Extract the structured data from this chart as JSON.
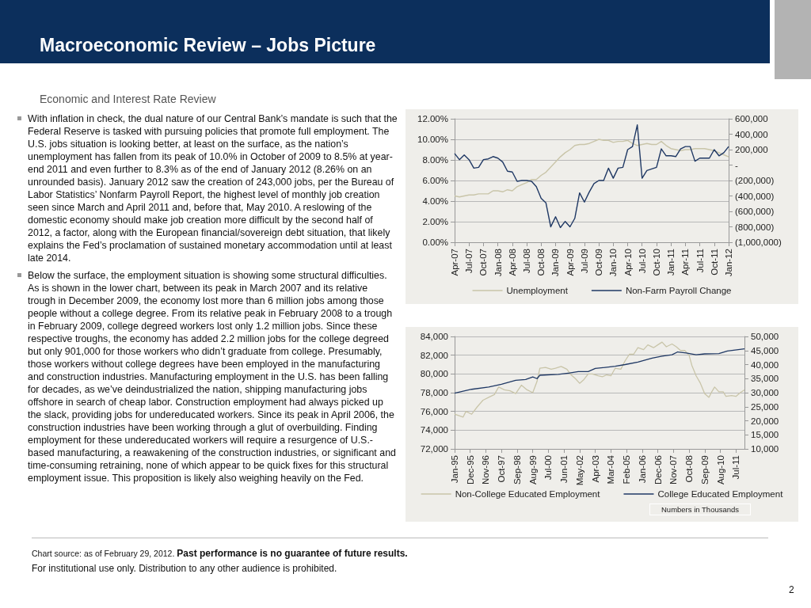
{
  "chart_data": [
    {
      "type": "line",
      "title": "Macroeconomic Review – Jobs Picture",
      "annotations": [
        "Economic and Interest Rate Review",
        "With inflation in check, the dual nature of our Central Bank’s mandate is such that the Federal Reserve is tasked with pursuing policies that promote full employment. The U.S. jobs situation is looking better, at least on the surface, as the nation’s unemployment has fallen from its peak of 10.0% in October of 2009 to 8.5% at year-end 2011 and even further to 8.3% as of the end of January 2012 (8.26% on an unrounded basis). January 2012 saw the creation of 243,000 jobs, per the Bureau of Labor Statistics’ Nonfarm Payroll Report, the highest level of monthly job creation seen since March and April 2011 and, before that, May 2010. A reslowing of the domestic economy should make job creation more difficult by the second half of 2012, a factor, along with the European financial/sovereign debt situation, that likely explains the Fed’s proclamation of sustained monetary accommodation until at least late 2014.",
        "Below the surface, the employment situation is showing some structural difficulties. As is shown in the lower chart, between its peak in March 2007 and its relative trough in December 2009, the economy lost more than 6 million jobs among those people without a college degree. From its relative peak in February 2008 to a trough in February 2009, college degreed workers lost only 1.2 million jobs. Since these respective troughs, the economy has added 2.2 million jobs for the college degreed but only 901,000 for those workers who didn’t graduate from college. Presumably, those workers without college degrees have been employed in the manufacturing and construction industries. Manufacturing employment in the U.S. has been falling for decades, as we’ve deindustrialized the nation, shipping manufacturing jobs offshore in search of cheap labor. Construction employment had always picked up the slack, providing jobs for undereducated workers. Since its peak in April 2006, the construction industries have been working through a glut of overbuilding. Finding employment for these undereducated workers will require a resurgence of U.S.-based manufacturing, a reawakening of the construction industries, or significant and time-consuming retraining, none of which appear to be quick fixes for this structural employment issue. This proposition is likely also weighing heavily on the Fed."
      ],
      "x": [
        "2007-04",
        "2007-05",
        "2007-06",
        "2007-07",
        "2007-08",
        "2007-09",
        "2007-10",
        "2007-11",
        "2007-12",
        "2008-01",
        "2008-02",
        "2008-03",
        "2008-04",
        "2008-05",
        "2008-06",
        "2008-07",
        "2008-08",
        "2008-09",
        "2008-10",
        "2008-11",
        "2008-12",
        "2009-01",
        "2009-02",
        "2009-03",
        "2009-04",
        "2009-05",
        "2009-06",
        "2009-07",
        "2009-08",
        "2009-09",
        "2009-10",
        "2009-11",
        "2009-12",
        "2010-01",
        "2010-02",
        "2010-03",
        "2010-04",
        "2010-05",
        "2010-06",
        "2010-07",
        "2010-08",
        "2010-09",
        "2010-10",
        "2010-11",
        "2010-12",
        "2011-01",
        "2011-02",
        "2011-03",
        "2011-04",
        "2011-05",
        "2011-06",
        "2011-07",
        "2011-08",
        "2011-09",
        "2011-10",
        "2011-11",
        "2011-12",
        "2012-01"
      ],
      "series": [
        {
          "name": "Unemployment",
          "color": "#c9c5a9",
          "values": [
            4.5,
            4.4,
            4.5,
            4.6,
            4.6,
            4.7,
            4.7,
            4.7,
            5.0,
            5.0,
            4.9,
            5.1,
            5.0,
            5.4,
            5.6,
            5.8,
            6.1,
            6.1,
            6.5,
            6.8,
            7.3,
            7.8,
            8.3,
            8.7,
            9.0,
            9.4,
            9.5,
            9.5,
            9.6,
            9.8,
            10.0,
            9.9,
            9.9,
            9.7,
            9.8,
            9.8,
            9.9,
            9.6,
            9.4,
            9.5,
            9.6,
            9.5,
            9.5,
            9.8,
            9.4,
            9.1,
            9.0,
            8.9,
            9.0,
            9.0,
            9.1,
            9.1,
            9.1,
            9.0,
            8.9,
            8.7,
            8.5,
            8.3
          ]
        },
        {
          "name": "Non-Farm Payroll Change",
          "color": "#1f3864",
          "axis": "y2",
          "values": [
            150000,
            70000,
            130000,
            70000,
            -40000,
            -30000,
            70000,
            80000,
            110000,
            90000,
            40000,
            -80000,
            -90000,
            -210000,
            -200000,
            -200000,
            -210000,
            -280000,
            -430000,
            -490000,
            -800000,
            -670000,
            -810000,
            -730000,
            -800000,
            -690000,
            -360000,
            -480000,
            -350000,
            -240000,
            -200000,
            -200000,
            -40000,
            -170000,
            -40000,
            -30000,
            200000,
            240000,
            520000,
            -170000,
            -70000,
            -50000,
            -30000,
            210000,
            120000,
            120000,
            110000,
            210000,
            240000,
            240000,
            50000,
            90000,
            90000,
            90000,
            200000,
            120000,
            160000,
            240000
          ]
        }
      ],
      "xlim": [
        "2007-04",
        "2012-01"
      ],
      "xticks": [
        {
          "value": "2007-04",
          "label": "Apr-07"
        },
        {
          "value": "2007-07",
          "label": "Jul-07"
        },
        {
          "value": "2007-10",
          "label": "Oct-07"
        },
        {
          "value": "2008-01",
          "label": "Jan-08"
        },
        {
          "value": "2008-04",
          "label": "Apr-08"
        },
        {
          "value": "2008-07",
          "label": "Jul-08"
        },
        {
          "value": "2008-10",
          "label": "Oct-08"
        },
        {
          "value": "2009-01",
          "label": "Jan-09"
        },
        {
          "value": "2009-04",
          "label": "Apr-09"
        },
        {
          "value": "2009-07",
          "label": "Jul-09"
        },
        {
          "value": "2009-10",
          "label": "Oct-09"
        },
        {
          "value": "2010-01",
          "label": "Jan-10"
        },
        {
          "value": "2010-04",
          "label": "Apr-10"
        },
        {
          "value": "2010-07",
          "label": "Jul-10"
        },
        {
          "value": "2010-10",
          "label": "Oct-10"
        },
        {
          "value": "2011-01",
          "label": "Jan-11"
        },
        {
          "value": "2011-04",
          "label": "Apr-11"
        },
        {
          "value": "2011-07",
          "label": "Jul-11"
        },
        {
          "value": "2011-10",
          "label": "Oct-11"
        },
        {
          "value": "2012-01",
          "label": "Jan-12"
        }
      ],
      "ylim": [
        0,
        12
      ],
      "yticks": [
        {
          "value": 0,
          "label": "0.00%"
        },
        {
          "value": 2,
          "label": "2.00%"
        },
        {
          "value": 4,
          "label": "4.00%"
        },
        {
          "value": 6,
          "label": "6.00%"
        },
        {
          "value": 8,
          "label": "8.00%"
        },
        {
          "value": 10,
          "label": "10.00%"
        },
        {
          "value": 12,
          "label": "12.00%"
        }
      ],
      "y2lim": [
        -1000000,
        600000
      ],
      "y2ticks": [
        {
          "value": -1000000,
          "label": "(1,000,000)"
        },
        {
          "value": -800000,
          "label": "(800,000)"
        },
        {
          "value": -600000,
          "label": "(600,000)"
        },
        {
          "value": -400000,
          "label": "(400,000)"
        },
        {
          "value": -200000,
          "label": "(200,000)"
        },
        {
          "value": 0,
          "label": "-"
        },
        {
          "value": 200000,
          "label": "200,000"
        },
        {
          "value": 400000,
          "label": "400,000"
        },
        {
          "value": 600000,
          "label": "600,000"
        }
      ],
      "grid": "y",
      "legend": "bottom"
    },
    {
      "type": "line",
      "annotations": [
        "Numbers in Thousands",
        "Chart source: as of February 29, 2012.",
        "Past performance is no guarantee of future results.",
        "For institutional use only. Distribution to any other audience is prohibited.",
        "2"
      ],
      "series": [
        {
          "name": "Non-College Educated Employment",
          "color": "#c9c5a9",
          "x": [
            "1995-01",
            "1995-05",
            "1995-07",
            "1995-09",
            "1996-01",
            "1996-05",
            "1996-09",
            "1997-01",
            "1997-05",
            "1997-08",
            "1997-12",
            "1998-04",
            "1998-08",
            "1998-12",
            "1999-04",
            "1999-08",
            "1999-11",
            "2000-01",
            "2000-05",
            "2000-09",
            "2000-12",
            "2001-04",
            "2001-08",
            "2001-11",
            "2002-02",
            "2002-05",
            "2002-08",
            "2002-11",
            "2003-02",
            "2003-06",
            "2003-09",
            "2003-12",
            "2004-03",
            "2004-06",
            "2004-10",
            "2005-01",
            "2005-04",
            "2005-07",
            "2005-10",
            "2006-02",
            "2006-05",
            "2006-09",
            "2006-12",
            "2007-03",
            "2007-06",
            "2007-10",
            "2008-01",
            "2008-04",
            "2008-07",
            "2008-10",
            "2008-12",
            "2009-03",
            "2009-06",
            "2009-09",
            "2009-12",
            "2010-02",
            "2010-04",
            "2010-07",
            "2010-10",
            "2010-12",
            "2011-04",
            "2011-07",
            "2011-10",
            "2012-01"
          ],
          "values": [
            75700,
            75500,
            75400,
            76000,
            75700,
            76500,
            77200,
            77500,
            77800,
            78600,
            78300,
            78200,
            77900,
            78800,
            78300,
            78000,
            79200,
            80600,
            80700,
            80500,
            80600,
            80800,
            80500,
            79900,
            79500,
            79000,
            79400,
            80000,
            80000,
            79800,
            79700,
            79900,
            79800,
            80600,
            80500,
            81400,
            82100,
            82100,
            82800,
            82600,
            83100,
            82800,
            83100,
            83400,
            82900,
            83200,
            82900,
            82500,
            82500,
            82000,
            80900,
            79800,
            79000,
            77900,
            77500,
            78100,
            78600,
            78100,
            78100,
            77600,
            77700,
            77600,
            78000,
            78300
          ]
        },
        {
          "name": "College Educated Employment",
          "color": "#1f3864",
          "axis": "y2",
          "x": [
            "1995-01",
            "1996-01",
            "1997-01",
            "1997-10",
            "1998-08",
            "1999-03",
            "1999-08",
            "1999-11",
            "2000-01",
            "2001-02",
            "2001-10",
            "2002-04",
            "2002-11",
            "2003-04",
            "2004-06",
            "2005-01",
            "2005-10",
            "2006-08",
            "2007-03",
            "2007-10",
            "2008-02",
            "2008-08",
            "2009-03",
            "2009-09",
            "2010-07",
            "2011-01",
            "2012-01"
          ],
          "values": [
            29800,
            31200,
            32000,
            33000,
            34400,
            34700,
            35600,
            35000,
            36200,
            36500,
            37000,
            37500,
            37500,
            38600,
            39400,
            40000,
            40900,
            42300,
            43000,
            43500,
            44500,
            44100,
            43500,
            43800,
            43900,
            44800,
            45600
          ]
        }
      ],
      "xlim": [
        "1995-01",
        "2012-01"
      ],
      "xticks": [
        {
          "value": "1995-01",
          "label": "Jan-95"
        },
        {
          "value": "1995-12",
          "label": "Dec-95"
        },
        {
          "value": "1996-11",
          "label": "Nov-96"
        },
        {
          "value": "1997-10",
          "label": "Oct-97"
        },
        {
          "value": "1998-09",
          "label": "Sep-98"
        },
        {
          "value": "1999-08",
          "label": "Aug-99"
        },
        {
          "value": "2000-07",
          "label": "Jul-00"
        },
        {
          "value": "2001-06",
          "label": "Jun-01"
        },
        {
          "value": "2002-05",
          "label": "May-02"
        },
        {
          "value": "2003-04",
          "label": "Apr-03"
        },
        {
          "value": "2004-03",
          "label": "Mar-04"
        },
        {
          "value": "2005-02",
          "label": "Feb-05"
        },
        {
          "value": "2006-01",
          "label": "Jan-06"
        },
        {
          "value": "2006-12",
          "label": "Dec-06"
        },
        {
          "value": "2007-11",
          "label": "Nov-07"
        },
        {
          "value": "2008-10",
          "label": "Oct-08"
        },
        {
          "value": "2009-09",
          "label": "Sep-09"
        },
        {
          "value": "2010-08",
          "label": "Aug-10"
        },
        {
          "value": "2011-07",
          "label": "Jul-11"
        }
      ],
      "ylim": [
        72000,
        84000
      ],
      "yticks": [
        {
          "value": 72000,
          "label": "72,000"
        },
        {
          "value": 74000,
          "label": "74,000"
        },
        {
          "value": 76000,
          "label": "76,000"
        },
        {
          "value": 78000,
          "label": "78,000"
        },
        {
          "value": 80000,
          "label": "80,000"
        },
        {
          "value": 82000,
          "label": "82,000"
        },
        {
          "value": 84000,
          "label": "84,000"
        }
      ],
      "y2lim": [
        10000,
        50000
      ],
      "y2ticks": [
        {
          "value": 10000,
          "label": "10,000"
        },
        {
          "value": 15000,
          "label": "15,000"
        },
        {
          "value": 20000,
          "label": "20,000"
        },
        {
          "value": 25000,
          "label": "25,000"
        },
        {
          "value": 30000,
          "label": "30,000"
        },
        {
          "value": 35000,
          "label": "35,000"
        },
        {
          "value": 40000,
          "label": "40,000"
        },
        {
          "value": 45000,
          "label": "45,000"
        },
        {
          "value": 50000,
          "label": "50,000"
        }
      ],
      "grid": "y",
      "legend": "bottom"
    }
  ]
}
